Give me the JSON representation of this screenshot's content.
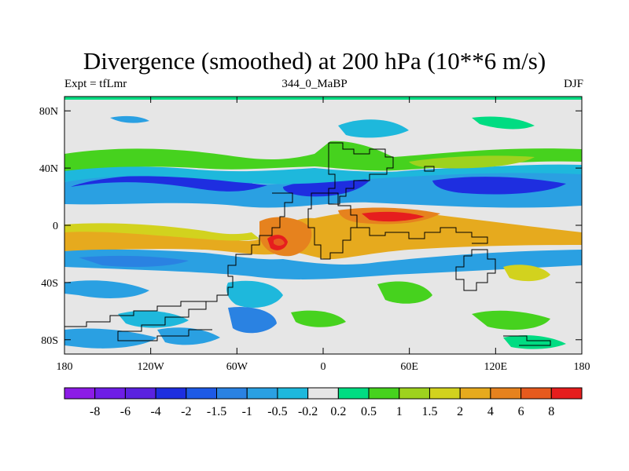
{
  "title": "Divergence (smoothed) at 200 hPa (10**6 m/s)",
  "subtitle_left": "Expt = tfLmr",
  "subtitle_center": "344_0_MaBP",
  "subtitle_right": "DJF",
  "map": {
    "lon_range": [
      -180,
      180
    ],
    "lat_range": [
      -90,
      90
    ],
    "x_ticks": [
      {
        "value": -180,
        "label": "180"
      },
      {
        "value": -120,
        "label": "120W"
      },
      {
        "value": -60,
        "label": "60W"
      },
      {
        "value": 0,
        "label": "0"
      },
      {
        "value": 60,
        "label": "60E"
      },
      {
        "value": 120,
        "label": "120E"
      },
      {
        "value": 180,
        "label": "180"
      }
    ],
    "y_ticks": [
      {
        "value": 80,
        "label": "80N"
      },
      {
        "value": 40,
        "label": "40N"
      },
      {
        "value": 0,
        "label": "0"
      },
      {
        "value": -40,
        "label": "40S"
      },
      {
        "value": -80,
        "label": "80S"
      }
    ],
    "background_color": "#e6e6e6"
  },
  "colorbar": {
    "colors": [
      "#8c1ce6",
      "#6e1ee6",
      "#5a22e0",
      "#1e2ee0",
      "#1e5ae6",
      "#2a82e2",
      "#2aa0e2",
      "#1eb8dc",
      "#e6e6e6",
      "#00dc82",
      "#46d21e",
      "#9ed21e",
      "#d2d21e",
      "#e6aa1e",
      "#e6821e",
      "#e65a1e",
      "#e61e1e"
    ],
    "labels": [
      "-8",
      "-6",
      "-4",
      "-2",
      "-1.5",
      "-1",
      "-0.5",
      "-0.2",
      "0.2",
      "0.5",
      "1",
      "1.5",
      "2",
      "4",
      "6",
      "8"
    ]
  }
}
